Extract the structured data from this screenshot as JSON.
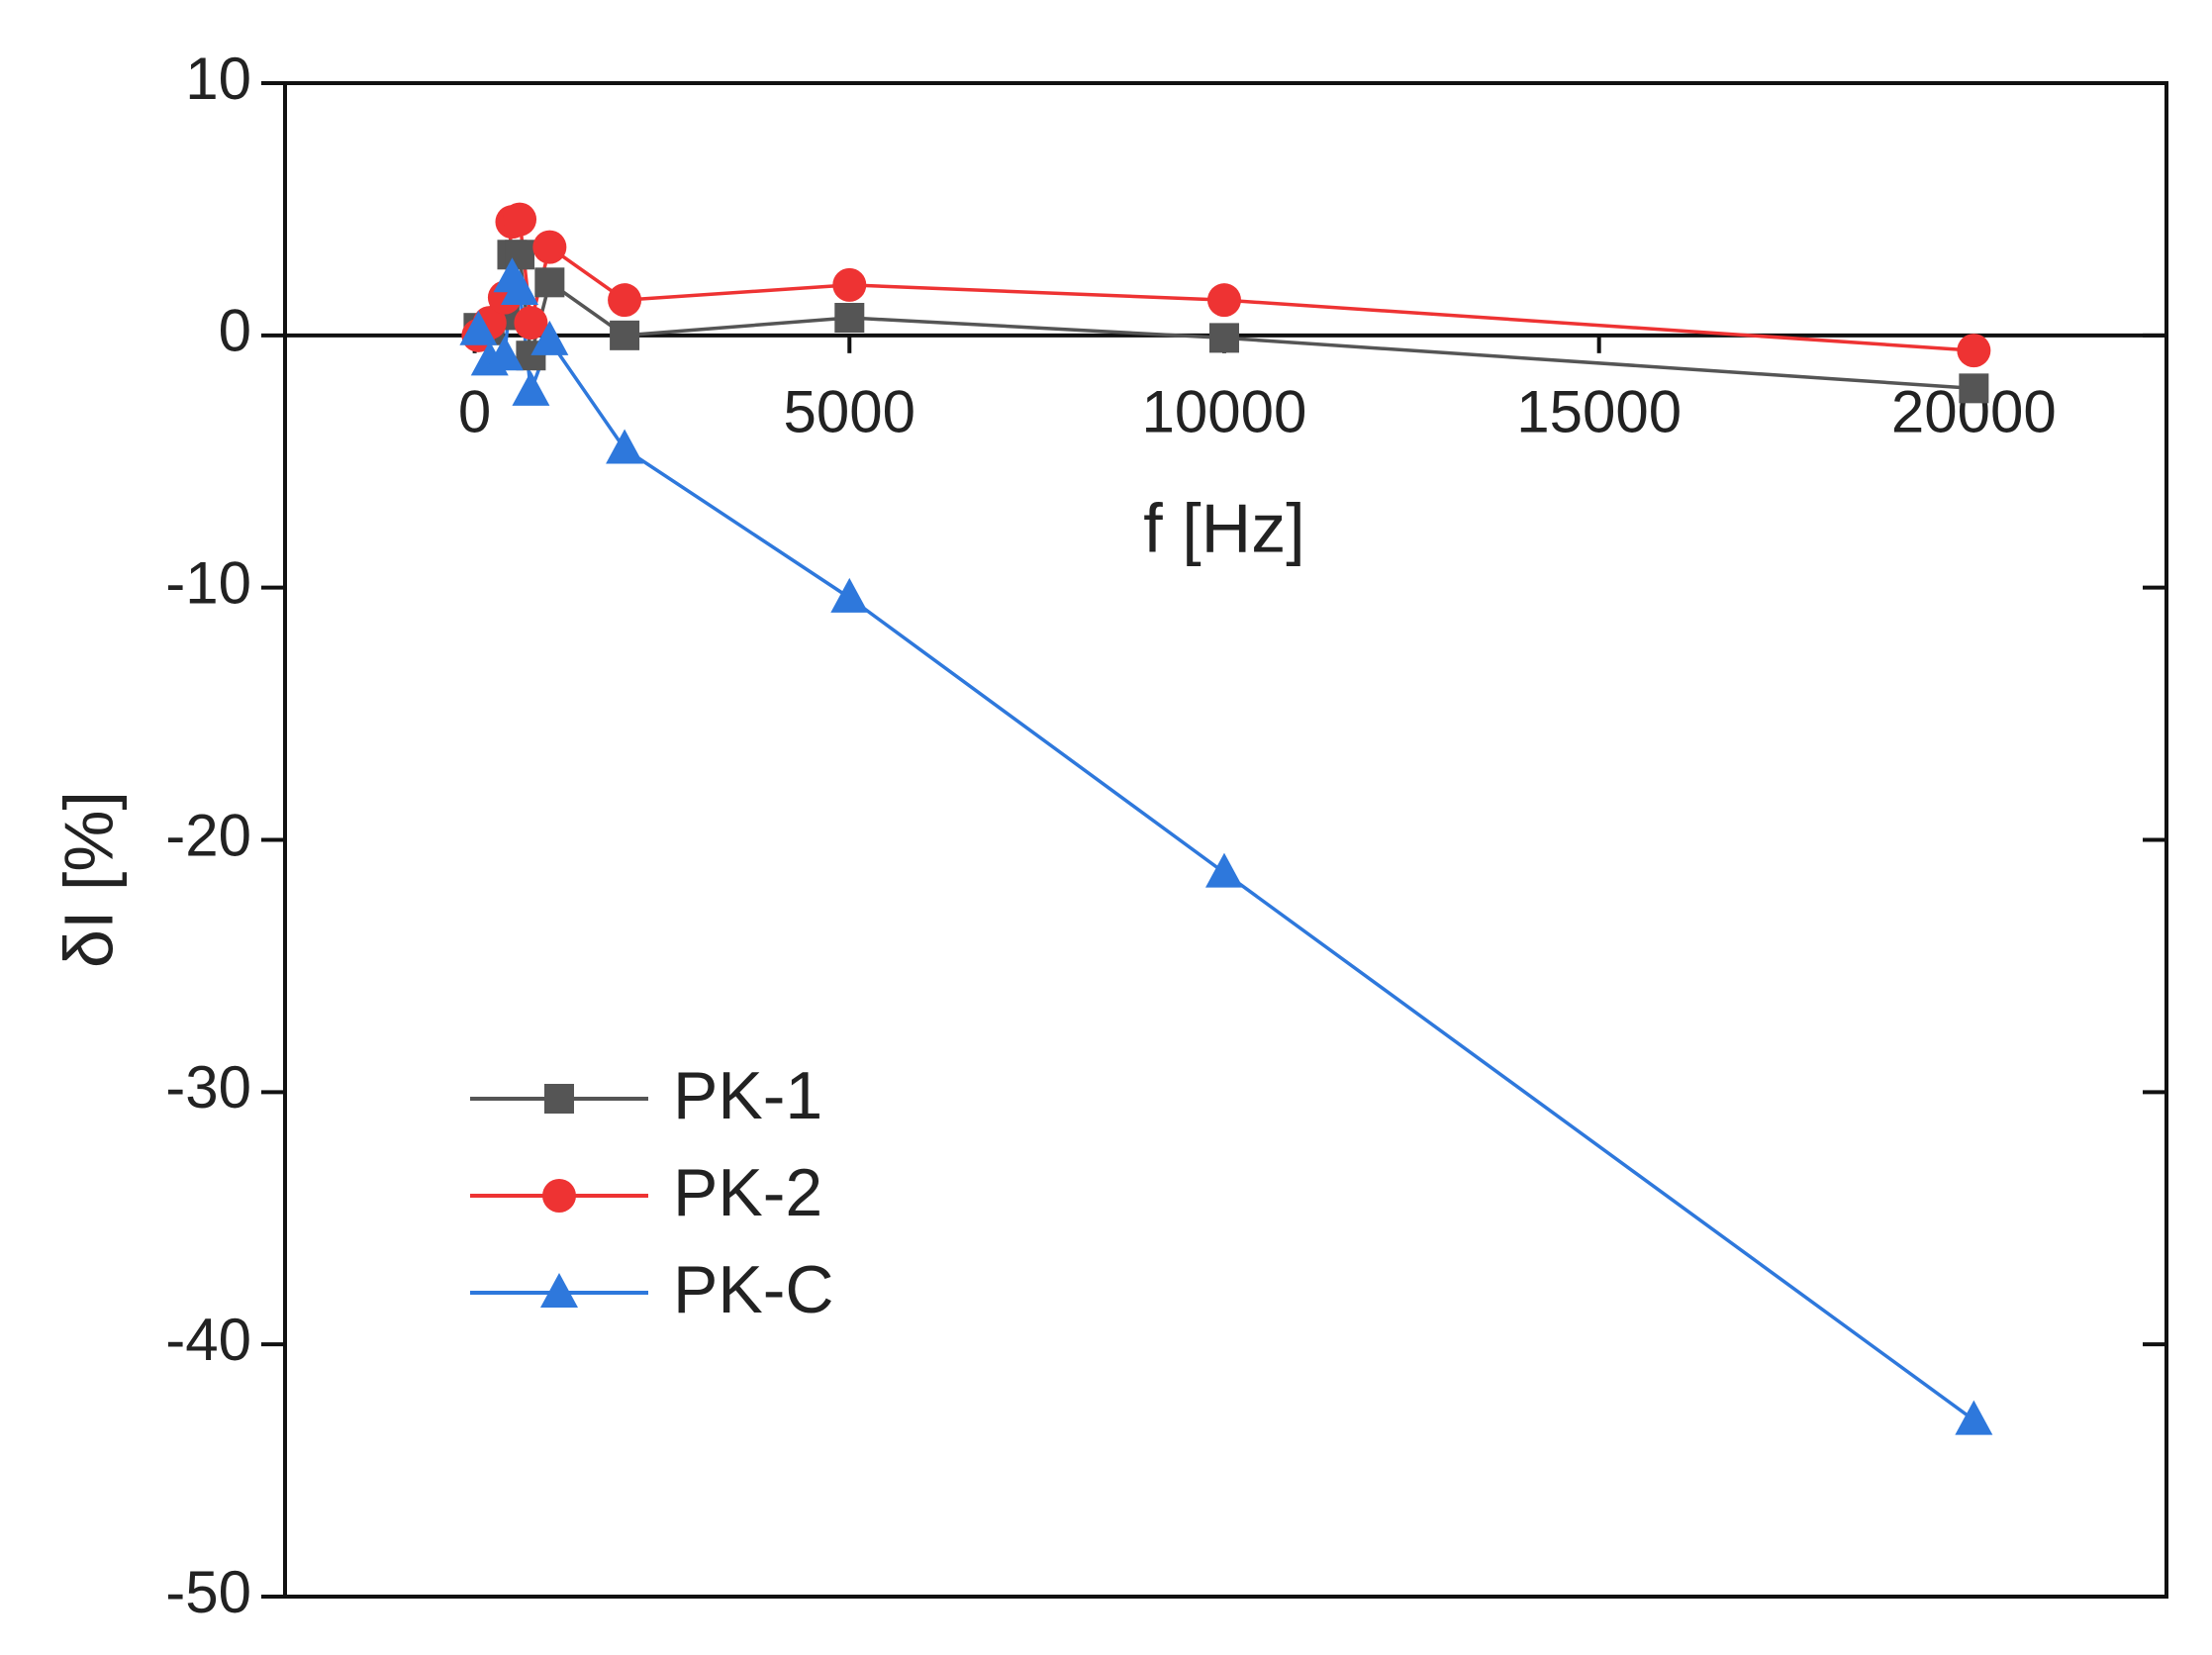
{
  "chart_data": {
    "type": "line",
    "x_label": "f [Hz]",
    "y_label": "δI [%]",
    "x": [
      50,
      200,
      400,
      500,
      600,
      750,
      1000,
      2000,
      5000,
      10000,
      20000
    ],
    "series": [
      {
        "name": "PK-1",
        "color": "#555555",
        "marker": "square",
        "values": [
          0.3,
          0.2,
          0.8,
          3.2,
          3.2,
          -0.8,
          2.1,
          0,
          0.7,
          -0.1,
          -2.1
        ]
      },
      {
        "name": "PK-2",
        "color": "#ee3333",
        "marker": "circle",
        "values": [
          0,
          0.5,
          1.5,
          4.5,
          4.6,
          0.5,
          3.5,
          1.4,
          2.0,
          1.4,
          -0.6
        ]
      },
      {
        "name": "PK-C",
        "color": "#2e78dc",
        "marker": "triangle",
        "values": [
          0.2,
          -1,
          -0.8,
          2.3,
          1.8,
          -2.2,
          -0.2,
          -4.5,
          -10.4,
          -21.3,
          -43
        ]
      }
    ],
    "xlim": [
      -2530,
      22570
    ],
    "ylim": [
      -50,
      10
    ],
    "xticks": [
      0,
      5000,
      10000,
      15000,
      20000
    ],
    "yticks": [
      -50,
      -40,
      -30,
      -20,
      -10,
      0,
      10
    ],
    "legend": "lower-left"
  }
}
